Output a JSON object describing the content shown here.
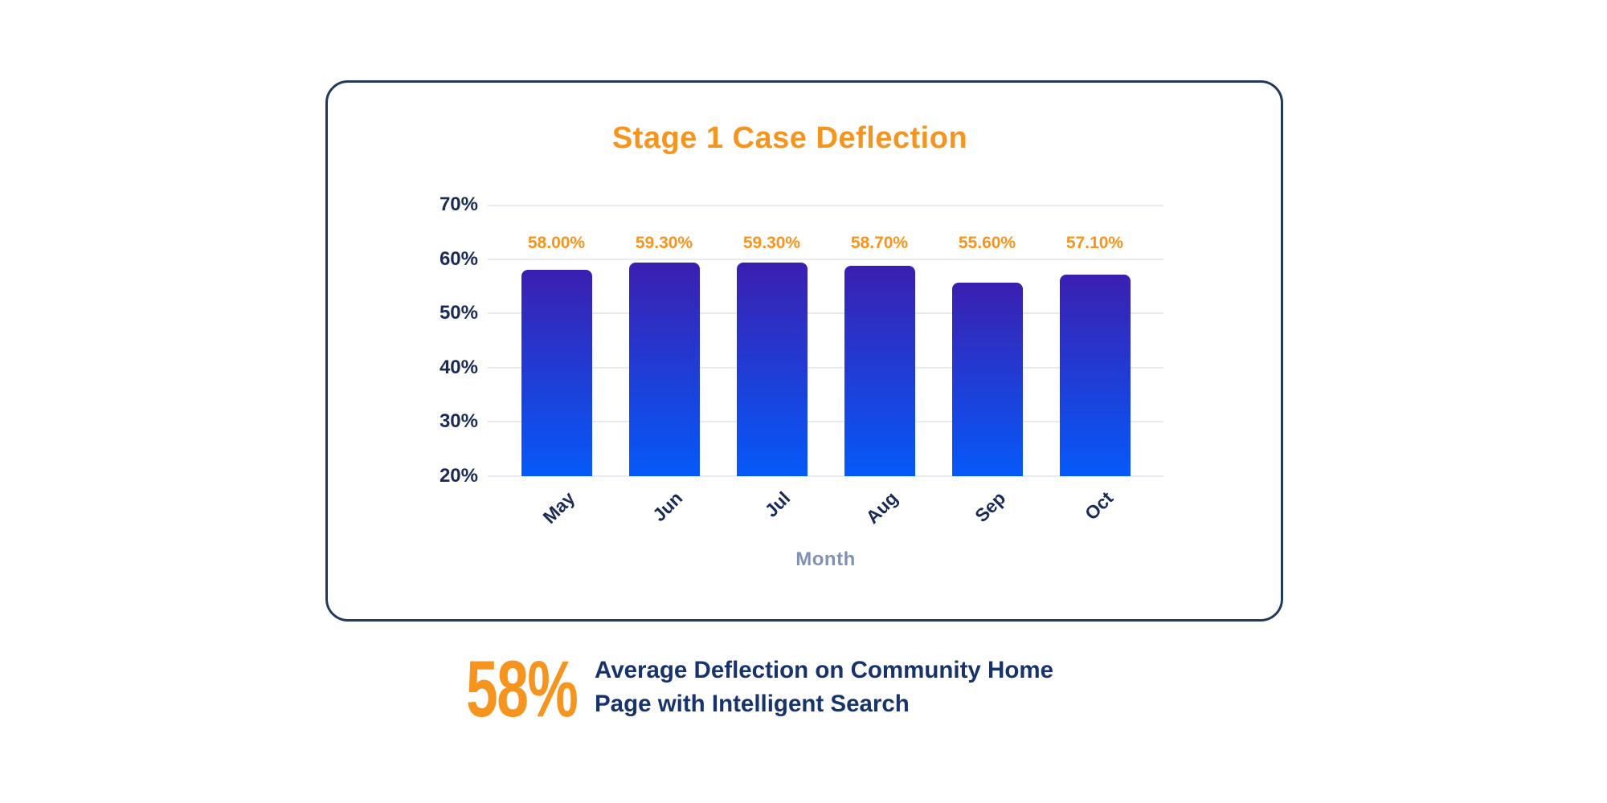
{
  "page": {
    "background": "#ffffff"
  },
  "card": {
    "background": "#ffffff",
    "border_color": "#22395C"
  },
  "chart_data": {
    "type": "bar",
    "title": "Stage 1 Case Deflection",
    "categories": [
      "May",
      "Jun",
      "Jul",
      "Aug",
      "Sep",
      "Oct"
    ],
    "values": [
      58.0,
      59.3,
      59.3,
      58.7,
      55.6,
      57.1
    ],
    "value_labels": [
      "58.00%",
      "59.30%",
      "59.30%",
      "58.70%",
      "55.60%",
      "57.10%"
    ],
    "xlabel": "Month",
    "ylabel": "",
    "ylim": [
      20,
      70
    ],
    "yticks": [
      {
        "value": 70,
        "label": "70%"
      },
      {
        "value": 60,
        "label": "60%"
      },
      {
        "value": 50,
        "label": "50%"
      },
      {
        "value": 40,
        "label": "40%"
      },
      {
        "value": 30,
        "label": "30%"
      },
      {
        "value": 20,
        "label": "20%"
      }
    ],
    "grid": true,
    "legend": false,
    "colors": {
      "title": "#F5941E",
      "value_label": "#F5941E",
      "bar_gradient_top": "#3B1FB0",
      "bar_gradient_bottom": "#0659F9",
      "axis_text": "#1A2B55",
      "axis_title": "#8291B5",
      "gridline": "#E9EBF2",
      "card_border": "#22395C"
    }
  },
  "stat": {
    "value": "58%",
    "description_lines": [
      "Average Deflection on Community Home",
      "Page with Intelligent Search"
    ],
    "value_color": "#F5941E",
    "text_color": "#17336B"
  }
}
